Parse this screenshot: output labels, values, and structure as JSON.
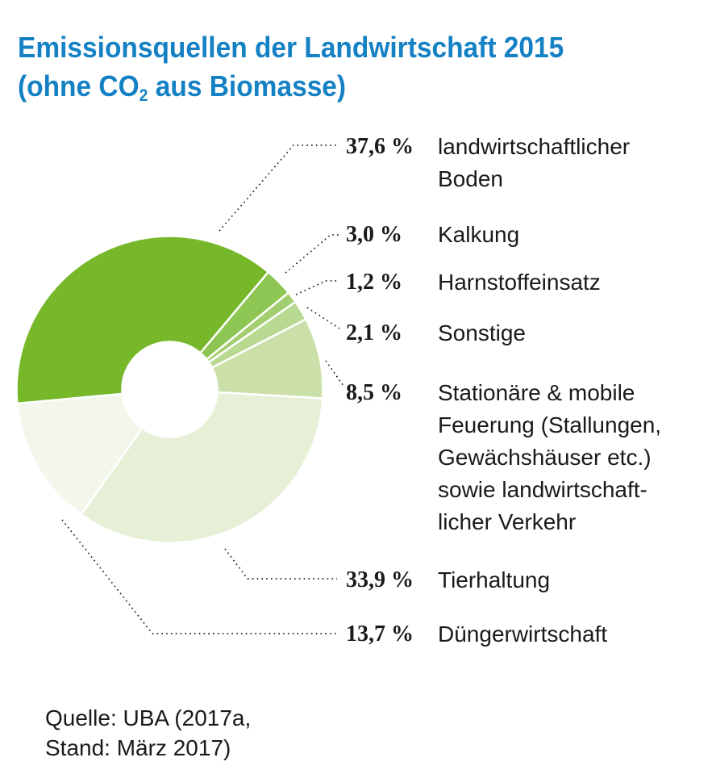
{
  "title": {
    "line1": "Emissionsquellen der Landwirtschaft 2015",
    "line2_pre": "(ohne CO",
    "line2_sub": "2",
    "line2_post": " aus Biomasse)"
  },
  "chart_data": {
    "type": "pie",
    "subtype": "donut",
    "title": "Emissionsquellen der Landwirtschaft 2015 (ohne CO2 aus Biomasse)",
    "unit": "%",
    "total": 100.0,
    "start_angle_deg_clockwise_from_top": 264.7,
    "legend_position": "right",
    "leader_line_style": "dotted",
    "slices": [
      {
        "label": "landwirtschaftlicher\nBoden",
        "value": 37.6,
        "percent_label": "37,6 %",
        "color": "#76B82A"
      },
      {
        "label": "Kalkung",
        "value": 3.0,
        "percent_label": "3,0 %",
        "color": "#8DC653"
      },
      {
        "label": "Harnstoffeinsatz",
        "value": 1.2,
        "percent_label": "1,2 %",
        "color": "#A3CE70"
      },
      {
        "label": "Sonstige",
        "value": 2.1,
        "percent_label": "2,1 %",
        "color": "#B7D990"
      },
      {
        "label": "Stationäre & mobile\nFeuerung (Stallungen,\nGewächshäuser etc.)\nsowie landwirtschaft-\nlicher Verkehr",
        "value": 8.5,
        "percent_label": "8,5 %",
        "color": "#CAE0A8"
      },
      {
        "label": "Tierhaltung",
        "value": 33.9,
        "percent_label": "33,9 %",
        "color": "#E5F0D6"
      },
      {
        "label": "Düngerwirtschaft",
        "value": 13.7,
        "percent_label": "13,7 %",
        "color": "#F3F7EB"
      }
    ]
  },
  "source": {
    "text": "Quelle: UBA (2017a,\nStand: März 2017)"
  },
  "colors": {
    "title": "#1581C5",
    "text": "#1A1A1A",
    "leader": "#1A1A1A",
    "slice_gap": "#FFFFFF",
    "background": "#FFFFFF"
  }
}
